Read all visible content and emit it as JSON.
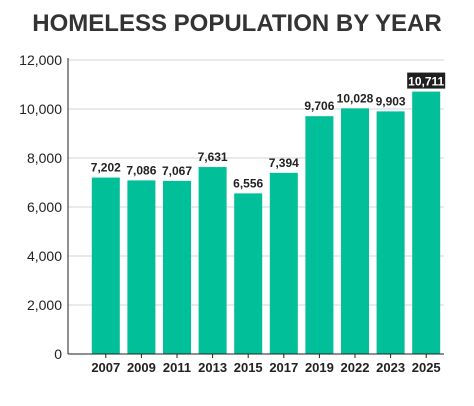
{
  "chart_data": {
    "type": "bar",
    "title": "HOMELESS POPULATION BY YEAR",
    "xlabel": "",
    "ylabel": "",
    "categories": [
      "2007",
      "2009",
      "2011",
      "2013",
      "2015",
      "2017",
      "2019",
      "2022",
      "2023",
      "2025"
    ],
    "values": [
      7202,
      7086,
      7067,
      7631,
      6556,
      7394,
      9706,
      10028,
      9903,
      10711
    ],
    "data_labels": [
      "7,202",
      "7,086",
      "7,067",
      "7,631",
      "6,556",
      "7,394",
      "9,706",
      "10,028",
      "9,903",
      "10,711"
    ],
    "highlighted_index": 9,
    "ylim": [
      0,
      12000
    ],
    "yticks": [
      0,
      2000,
      4000,
      6000,
      8000,
      10000,
      12000
    ],
    "ytick_labels": [
      "0",
      "2,000",
      "4,000",
      "6,000",
      "8,000",
      "10,000",
      "12,000"
    ],
    "grid": true,
    "legend": "none",
    "colors": {
      "bar": "#00bf99",
      "grid": "#d4d4d4",
      "axis": "#222222",
      "text": "#222222",
      "title": "#333333",
      "highlight_label_bg": "#1f1f1f",
      "highlight_label_text": "#ffffff"
    }
  }
}
